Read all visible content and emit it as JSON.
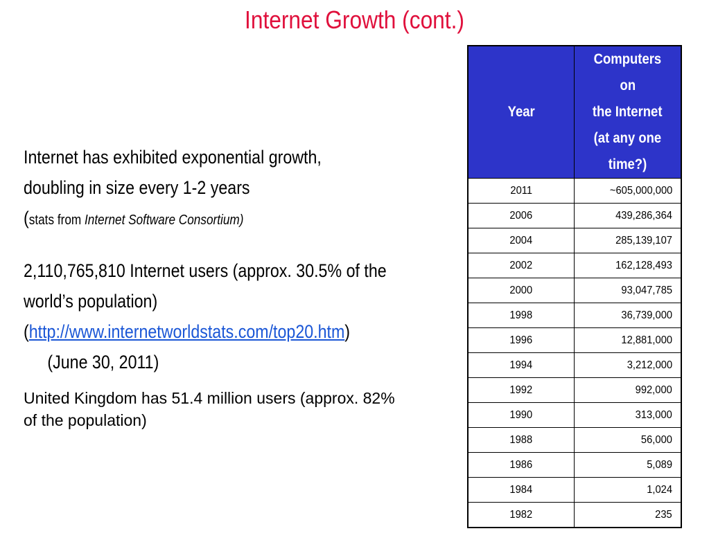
{
  "slide": {
    "title": "Internet Growth (cont.)"
  },
  "body": {
    "p1_line1": "Internet has exhibited exponential growth,",
    "p1_line2": "doubling in size every 1-2 years",
    "p1_paren_open": "(",
    "p1_source_prefix": "stats from ",
    "p1_source_name": "Internet Software Consortium)",
    "p2_line1": "2,110,765,810 Internet users (approx. 30.5% of the",
    "p2_line2": "world’s population)",
    "p2_paren_open": "(",
    "p2_link": "http://www.internetworldstats.com/top20.htm",
    "p2_paren_close": ")",
    "p2_date": "(June 30, 2011)",
    "p3_line1": "United Kingdom has 51.4 million users (approx. 82%",
    "p3_line2": "of the population)"
  },
  "table": {
    "header_year": "Year",
    "header_computers_line1": "Computers",
    "header_computers_line2": "on",
    "header_computers_line3": "the Internet",
    "header_computers_line4": "(at any one",
    "header_computers_line5": "time?)",
    "header_color": "#2d34c9",
    "rows": [
      {
        "year": "2011",
        "count": "~605,000,000"
      },
      {
        "year": "2006",
        "count": "439,286,364"
      },
      {
        "year": "2004",
        "count": "285,139,107"
      },
      {
        "year": "2002",
        "count": "162,128,493"
      },
      {
        "year": "2000",
        "count": "93,047,785"
      },
      {
        "year": "1998",
        "count": "36,739,000"
      },
      {
        "year": "1996",
        "count": "12,881,000"
      },
      {
        "year": "1994",
        "count": "3,212,000"
      },
      {
        "year": "1992",
        "count": "992,000"
      },
      {
        "year": "1990",
        "count": "313,000"
      },
      {
        "year": "1988",
        "count": "56,000"
      },
      {
        "year": "1986",
        "count": "5,089"
      },
      {
        "year": "1984",
        "count": "1,024"
      },
      {
        "year": "1982",
        "count": "235"
      }
    ]
  },
  "colors": {
    "title": "#e0103c",
    "link": "#1a56d6"
  }
}
